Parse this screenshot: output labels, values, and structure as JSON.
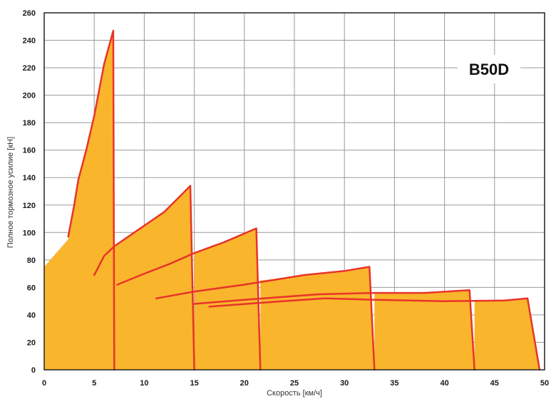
{
  "chart_data": {
    "type": "area",
    "title": "",
    "badge": "B50D",
    "xlabel": "Скорость [км/ч]",
    "ylabel": "Полное тормозное усилие [кН]",
    "xlim": [
      0,
      50
    ],
    "ylim": [
      0,
      260
    ],
    "x_ticks": [
      0,
      5,
      10,
      15,
      20,
      25,
      30,
      35,
      40,
      45,
      50
    ],
    "y_ticks": [
      0,
      20,
      40,
      60,
      80,
      100,
      120,
      140,
      160,
      180,
      200,
      220,
      240,
      260
    ],
    "grid": true,
    "colors": {
      "fill": "#f9b52c",
      "line": "#e8332a",
      "grid": "#9a9a9a",
      "axis": "#222222"
    },
    "envelope": [
      [
        0,
        75
      ],
      [
        2.4,
        95
      ],
      [
        3.4,
        140
      ],
      [
        5,
        185
      ],
      [
        6,
        225
      ],
      [
        6.9,
        247
      ],
      [
        7,
        0
      ],
      [
        7,
        90
      ],
      [
        10,
        105
      ],
      [
        12,
        115
      ],
      [
        14.6,
        134
      ],
      [
        15,
        0
      ],
      [
        15,
        85
      ],
      [
        18,
        93
      ],
      [
        21.2,
        103
      ],
      [
        21.6,
        0
      ],
      [
        21.6,
        65
      ],
      [
        26,
        69
      ],
      [
        30,
        72
      ],
      [
        32.5,
        75
      ],
      [
        33,
        0
      ],
      [
        33,
        56
      ],
      [
        38,
        56
      ],
      [
        42.5,
        58
      ],
      [
        43,
        0
      ],
      [
        43,
        50
      ],
      [
        46,
        50.5
      ],
      [
        48.3,
        52
      ],
      [
        49.5,
        0
      ],
      [
        0,
        0
      ]
    ],
    "series": [
      {
        "values": [
          [
            2.4,
            97
          ],
          [
            3,
            120
          ],
          [
            3.4,
            138
          ],
          [
            4.2,
            160
          ],
          [
            5,
            185
          ],
          [
            6,
            223
          ],
          [
            6.9,
            247
          ],
          [
            7,
            0
          ]
        ]
      },
      {
        "values": [
          [
            5,
            69
          ],
          [
            6,
            83
          ],
          [
            7,
            90
          ],
          [
            10,
            105
          ],
          [
            12,
            115
          ],
          [
            14.6,
            134
          ],
          [
            15,
            0
          ]
        ]
      },
      {
        "values": [
          [
            7.3,
            62
          ],
          [
            10,
            70
          ],
          [
            12.5,
            77
          ],
          [
            15,
            85
          ],
          [
            18,
            93
          ],
          [
            21.2,
            103
          ],
          [
            21.6,
            0
          ]
        ]
      },
      {
        "values": [
          [
            11.2,
            52
          ],
          [
            15,
            57
          ],
          [
            20,
            62
          ],
          [
            26,
            69
          ],
          [
            30,
            72
          ],
          [
            32.5,
            75
          ],
          [
            33,
            0
          ]
        ]
      },
      {
        "values": [
          [
            15,
            48
          ],
          [
            20,
            51
          ],
          [
            27.5,
            55
          ],
          [
            33,
            56
          ],
          [
            38,
            56
          ],
          [
            42.5,
            58
          ],
          [
            43,
            0
          ]
        ]
      },
      {
        "values": [
          [
            16.5,
            46
          ],
          [
            22,
            49
          ],
          [
            28,
            52
          ],
          [
            33,
            51
          ],
          [
            40,
            50
          ],
          [
            46,
            50.5
          ],
          [
            48.3,
            52
          ],
          [
            49.5,
            0
          ]
        ]
      }
    ]
  }
}
